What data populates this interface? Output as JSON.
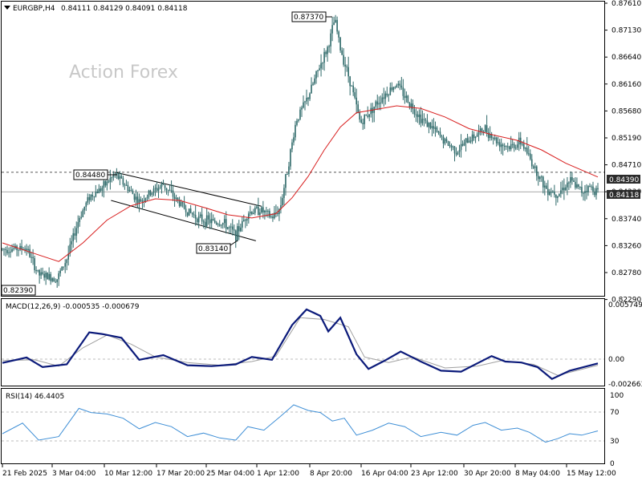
{
  "header": {
    "symbol": "EURGBP,H4",
    "ohlc": "0.84111 0.84129 0.84091 0.84118",
    "dropdown_icon": "triangle-down-icon"
  },
  "watermark": "Action Forex",
  "colors": {
    "candle": "#2f6a6a",
    "ma": "#d81e1e",
    "macd": "#0b1a7a",
    "signal": "#a0a0a0",
    "rsi": "#3f8fd6",
    "channel": "#000000",
    "grid": "#bdbdbd"
  },
  "price_axis": [
    "0.87610",
    "0.87130",
    "0.86640",
    "0.86160",
    "0.85680",
    "0.85190",
    "0.84710",
    "0.84230",
    "0.83740",
    "0.83260",
    "0.82780",
    "0.82290"
  ],
  "price_badges": {
    "ma": "0.84390",
    "last": "0.84118"
  },
  "annotations": {
    "h1": "0.84480",
    "h2": "0.87370",
    "l1": "0.82390",
    "l2": "0.83140"
  },
  "macd": {
    "label": "MACD(12,26,9) -0.000535 -0.000679",
    "axis": {
      "top": "0.005749",
      "zero": "0.00",
      "bottom": "-0.002663"
    }
  },
  "rsi": {
    "label": "RSI(14) 46.4405",
    "axis": {
      "top": "100",
      "mid1": "70",
      "mid2": "30",
      "bottom": "0"
    }
  },
  "time_axis": [
    "21 Feb 2025",
    "3 Mar 04:00",
    "10 Mar 12:00",
    "17 Mar 20:00",
    "25 Mar 04:00",
    "1 Apr 12:00",
    "8 Apr 20:00",
    "16 Apr 04:00",
    "23 Apr 12:00",
    "30 Apr 20:00",
    "8 May 04:00",
    "15 May 12:00"
  ],
  "chart_data": [
    {
      "type": "candlestick",
      "title": "EURGBP,H4",
      "ylim": [
        0.822,
        0.8766
      ],
      "levels": [
        0.8448,
        0.8411
      ],
      "price_points": [
        {
          "x": 0,
          "y": 0.8303
        },
        {
          "x": 30,
          "y": 0.8305
        },
        {
          "x": 45,
          "y": 0.8255
        },
        {
          "x": 68,
          "y": 0.8248
        },
        {
          "x": 80,
          "y": 0.8285
        },
        {
          "x": 95,
          "y": 0.836
        },
        {
          "x": 108,
          "y": 0.8402
        },
        {
          "x": 125,
          "y": 0.842
        },
        {
          "x": 140,
          "y": 0.8444
        },
        {
          "x": 155,
          "y": 0.842
        },
        {
          "x": 170,
          "y": 0.8392
        },
        {
          "x": 185,
          "y": 0.841
        },
        {
          "x": 200,
          "y": 0.8425
        },
        {
          "x": 215,
          "y": 0.8398
        },
        {
          "x": 230,
          "y": 0.8375
        },
        {
          "x": 245,
          "y": 0.836
        },
        {
          "x": 260,
          "y": 0.8355
        },
        {
          "x": 275,
          "y": 0.8352
        },
        {
          "x": 290,
          "y": 0.833
        },
        {
          "x": 305,
          "y": 0.8372
        },
        {
          "x": 320,
          "y": 0.8378
        },
        {
          "x": 335,
          "y": 0.8362
        },
        {
          "x": 345,
          "y": 0.838
        },
        {
          "x": 355,
          "y": 0.846
        },
        {
          "x": 365,
          "y": 0.8545
        },
        {
          "x": 380,
          "y": 0.859
        },
        {
          "x": 395,
          "y": 0.865
        },
        {
          "x": 405,
          "y": 0.8685
        },
        {
          "x": 413,
          "y": 0.8736
        },
        {
          "x": 420,
          "y": 0.868
        },
        {
          "x": 432,
          "y": 0.862
        },
        {
          "x": 445,
          "y": 0.854
        },
        {
          "x": 458,
          "y": 0.8565
        },
        {
          "x": 472,
          "y": 0.859
        },
        {
          "x": 490,
          "y": 0.8615
        },
        {
          "x": 505,
          "y": 0.858
        },
        {
          "x": 520,
          "y": 0.855
        },
        {
          "x": 535,
          "y": 0.853
        },
        {
          "x": 550,
          "y": 0.8505
        },
        {
          "x": 565,
          "y": 0.8488
        },
        {
          "x": 580,
          "y": 0.851
        },
        {
          "x": 600,
          "y": 0.853
        },
        {
          "x": 615,
          "y": 0.8505
        },
        {
          "x": 630,
          "y": 0.8495
        },
        {
          "x": 645,
          "y": 0.8505
        },
        {
          "x": 660,
          "y": 0.846
        },
        {
          "x": 675,
          "y": 0.8418
        },
        {
          "x": 690,
          "y": 0.8408
        },
        {
          "x": 705,
          "y": 0.8432
        },
        {
          "x": 720,
          "y": 0.8412
        },
        {
          "x": 730,
          "y": 0.842
        },
        {
          "x": 740,
          "y": 0.8412
        }
      ],
      "ma_points": [
        {
          "x": 0,
          "y": 0.8315
        },
        {
          "x": 40,
          "y": 0.8295
        },
        {
          "x": 70,
          "y": 0.828
        },
        {
          "x": 100,
          "y": 0.8315
        },
        {
          "x": 130,
          "y": 0.8358
        },
        {
          "x": 160,
          "y": 0.8385
        },
        {
          "x": 190,
          "y": 0.8398
        },
        {
          "x": 220,
          "y": 0.8395
        },
        {
          "x": 250,
          "y": 0.8382
        },
        {
          "x": 280,
          "y": 0.8368
        },
        {
          "x": 310,
          "y": 0.8362
        },
        {
          "x": 340,
          "y": 0.837
        },
        {
          "x": 360,
          "y": 0.84
        },
        {
          "x": 380,
          "y": 0.844
        },
        {
          "x": 400,
          "y": 0.849
        },
        {
          "x": 420,
          "y": 0.8533
        },
        {
          "x": 440,
          "y": 0.856
        },
        {
          "x": 460,
          "y": 0.8565
        },
        {
          "x": 490,
          "y": 0.8573
        },
        {
          "x": 520,
          "y": 0.8568
        },
        {
          "x": 550,
          "y": 0.8552
        },
        {
          "x": 580,
          "y": 0.853
        },
        {
          "x": 610,
          "y": 0.8518
        },
        {
          "x": 640,
          "y": 0.8508
        },
        {
          "x": 670,
          "y": 0.849
        },
        {
          "x": 700,
          "y": 0.8465
        },
        {
          "x": 740,
          "y": 0.8439
        }
      ]
    },
    {
      "type": "line",
      "title": "MACD(12,26,9)",
      "ylim": [
        -0.002663,
        0.005749
      ],
      "series": [
        {
          "name": "MACD",
          "values": [
            {
              "x": 0,
              "y": -0.00045
            },
            {
              "x": 30,
              "y": 0.00015
            },
            {
              "x": 50,
              "y": -0.0009
            },
            {
              "x": 80,
              "y": -0.0006
            },
            {
              "x": 108,
              "y": 0.0029
            },
            {
              "x": 125,
              "y": 0.0027
            },
            {
              "x": 148,
              "y": 0.0023
            },
            {
              "x": 170,
              "y": -0.0001
            },
            {
              "x": 200,
              "y": 0.0004
            },
            {
              "x": 230,
              "y": -0.0007
            },
            {
              "x": 260,
              "y": -0.0008
            },
            {
              "x": 290,
              "y": -0.0006
            },
            {
              "x": 310,
              "y": 0.0002
            },
            {
              "x": 335,
              "y": -0.0001
            },
            {
              "x": 360,
              "y": 0.0037
            },
            {
              "x": 378,
              "y": 0.0054
            },
            {
              "x": 395,
              "y": 0.0047
            },
            {
              "x": 405,
              "y": 0.003
            },
            {
              "x": 420,
              "y": 0.0045
            },
            {
              "x": 440,
              "y": 0.0005
            },
            {
              "x": 455,
              "y": -0.0011
            },
            {
              "x": 475,
              "y": -0.0002
            },
            {
              "x": 495,
              "y": 0.0008
            },
            {
              "x": 520,
              "y": -0.0003
            },
            {
              "x": 545,
              "y": -0.0013
            },
            {
              "x": 570,
              "y": -0.0014
            },
            {
              "x": 590,
              "y": -0.0005
            },
            {
              "x": 608,
              "y": 0.0003
            },
            {
              "x": 625,
              "y": -0.0003
            },
            {
              "x": 645,
              "y": -0.0004
            },
            {
              "x": 665,
              "y": -0.0009
            },
            {
              "x": 683,
              "y": -0.0022
            },
            {
              "x": 705,
              "y": -0.0013
            },
            {
              "x": 740,
              "y": -0.0005
            }
          ]
        },
        {
          "name": "Signal",
          "values": [
            {
              "x": 0,
              "y": -0.0002
            },
            {
              "x": 40,
              "y": -0.0001
            },
            {
              "x": 70,
              "y": -0.0008
            },
            {
              "x": 100,
              "y": 0.0012
            },
            {
              "x": 130,
              "y": 0.0026
            },
            {
              "x": 160,
              "y": 0.0016
            },
            {
              "x": 190,
              "y": 0.0002
            },
            {
              "x": 230,
              "y": -0.0004
            },
            {
              "x": 270,
              "y": -0.0007
            },
            {
              "x": 310,
              "y": -0.0003
            },
            {
              "x": 340,
              "y": 0.0003
            },
            {
              "x": 370,
              "y": 0.0045
            },
            {
              "x": 400,
              "y": 0.0043
            },
            {
              "x": 430,
              "y": 0.0035
            },
            {
              "x": 450,
              "y": 0.0002
            },
            {
              "x": 480,
              "y": -0.0004
            },
            {
              "x": 510,
              "y": 0.0002
            },
            {
              "x": 550,
              "y": -0.001
            },
            {
              "x": 590,
              "y": -0.0008
            },
            {
              "x": 620,
              "y": -0.0002
            },
            {
              "x": 660,
              "y": -0.0006
            },
            {
              "x": 690,
              "y": -0.0018
            },
            {
              "x": 740,
              "y": -0.0007
            }
          ]
        }
      ]
    },
    {
      "type": "line",
      "title": "RSI(14)",
      "ylim": [
        0,
        100
      ],
      "levels": [
        70,
        30
      ],
      "series": [
        {
          "name": "RSI",
          "values": [
            {
              "x": 0,
              "y": 42
            },
            {
              "x": 25,
              "y": 57
            },
            {
              "x": 45,
              "y": 33
            },
            {
              "x": 70,
              "y": 38
            },
            {
              "x": 95,
              "y": 78
            },
            {
              "x": 110,
              "y": 72
            },
            {
              "x": 130,
              "y": 70
            },
            {
              "x": 150,
              "y": 64
            },
            {
              "x": 170,
              "y": 49
            },
            {
              "x": 190,
              "y": 58
            },
            {
              "x": 210,
              "y": 52
            },
            {
              "x": 230,
              "y": 38
            },
            {
              "x": 250,
              "y": 43
            },
            {
              "x": 270,
              "y": 36
            },
            {
              "x": 290,
              "y": 33
            },
            {
              "x": 305,
              "y": 52
            },
            {
              "x": 325,
              "y": 47
            },
            {
              "x": 345,
              "y": 66
            },
            {
              "x": 362,
              "y": 83
            },
            {
              "x": 380,
              "y": 75
            },
            {
              "x": 395,
              "y": 72
            },
            {
              "x": 410,
              "y": 60
            },
            {
              "x": 425,
              "y": 64
            },
            {
              "x": 440,
              "y": 40
            },
            {
              "x": 460,
              "y": 47
            },
            {
              "x": 480,
              "y": 57
            },
            {
              "x": 500,
              "y": 52
            },
            {
              "x": 520,
              "y": 38
            },
            {
              "x": 545,
              "y": 44
            },
            {
              "x": 565,
              "y": 40
            },
            {
              "x": 585,
              "y": 54
            },
            {
              "x": 600,
              "y": 58
            },
            {
              "x": 620,
              "y": 47
            },
            {
              "x": 640,
              "y": 50
            },
            {
              "x": 655,
              "y": 44
            },
            {
              "x": 675,
              "y": 30
            },
            {
              "x": 690,
              "y": 35
            },
            {
              "x": 705,
              "y": 42
            },
            {
              "x": 720,
              "y": 40
            },
            {
              "x": 740,
              "y": 46
            }
          ]
        }
      ]
    }
  ]
}
